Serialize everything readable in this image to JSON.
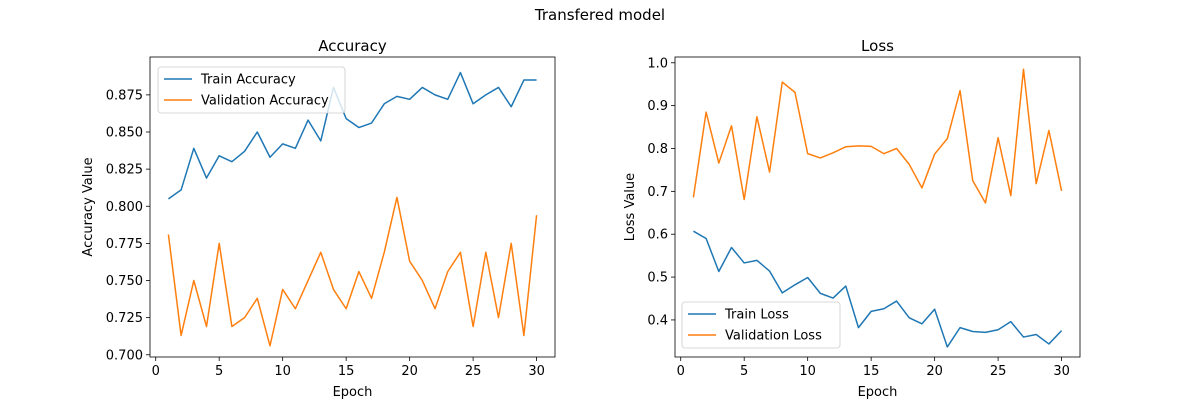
{
  "figure": {
    "suptitle": "Transfered model"
  },
  "colors": {
    "train": "#1f77b4",
    "validation": "#ff7f0e"
  },
  "chart_data": [
    {
      "type": "line",
      "title": "Accuracy",
      "xlabel": "Epoch",
      "ylabel": "Accuracy Value",
      "xlim": [
        -0.45,
        31.45
      ],
      "ylim": [
        0.6985,
        0.9005
      ],
      "xticks": [
        0,
        5,
        10,
        15,
        20,
        25,
        30
      ],
      "yticks": [
        0.7,
        0.725,
        0.75,
        0.775,
        0.8,
        0.825,
        0.85,
        0.875
      ],
      "ytick_labels": [
        "0.700",
        "0.725",
        "0.750",
        "0.775",
        "0.800",
        "0.825",
        "0.850",
        "0.875"
      ],
      "legend_position": "upper-left",
      "x": [
        1,
        2,
        3,
        4,
        5,
        6,
        7,
        8,
        9,
        10,
        11,
        12,
        13,
        14,
        15,
        16,
        17,
        18,
        19,
        20,
        21,
        22,
        23,
        24,
        25,
        26,
        27,
        28,
        29,
        30
      ],
      "series": [
        {
          "name": "Train Accuracy",
          "color": "#1f77b4",
          "values": [
            0.805,
            0.811,
            0.839,
            0.819,
            0.834,
            0.83,
            0.837,
            0.85,
            0.833,
            0.842,
            0.839,
            0.858,
            0.844,
            0.88,
            0.859,
            0.853,
            0.856,
            0.869,
            0.874,
            0.872,
            0.88,
            0.875,
            0.872,
            0.89,
            0.869,
            0.875,
            0.88,
            0.867,
            0.885,
            0.885
          ]
        },
        {
          "name": "Validation Accuracy",
          "color": "#ff7f0e",
          "values": [
            0.781,
            0.713,
            0.75,
            0.719,
            0.775,
            0.719,
            0.725,
            0.738,
            0.706,
            0.744,
            0.731,
            0.75,
            0.769,
            0.744,
            0.731,
            0.756,
            0.738,
            0.769,
            0.806,
            0.763,
            0.75,
            0.731,
            0.756,
            0.769,
            0.719,
            0.769,
            0.725,
            0.775,
            0.713,
            0.794
          ]
        }
      ]
    },
    {
      "type": "line",
      "title": "Loss",
      "xlabel": "Epoch",
      "ylabel": "Loss Value",
      "xlim": [
        -0.45,
        31.45
      ],
      "ylim": [
        0.3135,
        1.0135
      ],
      "xticks": [
        0,
        5,
        10,
        15,
        20,
        25,
        30
      ],
      "yticks": [
        0.4,
        0.5,
        0.6,
        0.7,
        0.8,
        0.9,
        1.0
      ],
      "ytick_labels": [
        "0.4",
        "0.5",
        "0.6",
        "0.7",
        "0.8",
        "0.9",
        "1.0"
      ],
      "legend_position": "lower-left",
      "x": [
        1,
        2,
        3,
        4,
        5,
        6,
        7,
        8,
        9,
        10,
        11,
        12,
        13,
        14,
        15,
        16,
        17,
        18,
        19,
        20,
        21,
        22,
        23,
        24,
        25,
        26,
        27,
        28,
        29,
        30
      ],
      "series": [
        {
          "name": "Train Loss",
          "color": "#1f77b4",
          "values": [
            0.607,
            0.59,
            0.513,
            0.569,
            0.533,
            0.539,
            0.514,
            0.463,
            0.482,
            0.499,
            0.462,
            0.451,
            0.479,
            0.382,
            0.42,
            0.426,
            0.444,
            0.405,
            0.391,
            0.425,
            0.337,
            0.382,
            0.373,
            0.371,
            0.377,
            0.396,
            0.36,
            0.366,
            0.344,
            0.375
          ]
        },
        {
          "name": "Validation Loss",
          "color": "#ff7f0e",
          "values": [
            0.686,
            0.885,
            0.766,
            0.853,
            0.681,
            0.874,
            0.745,
            0.955,
            0.931,
            0.788,
            0.778,
            0.79,
            0.804,
            0.806,
            0.805,
            0.788,
            0.8,
            0.763,
            0.708,
            0.787,
            0.823,
            0.935,
            0.725,
            0.673,
            0.825,
            0.69,
            0.985,
            0.718,
            0.842,
            0.701
          ]
        }
      ]
    }
  ]
}
